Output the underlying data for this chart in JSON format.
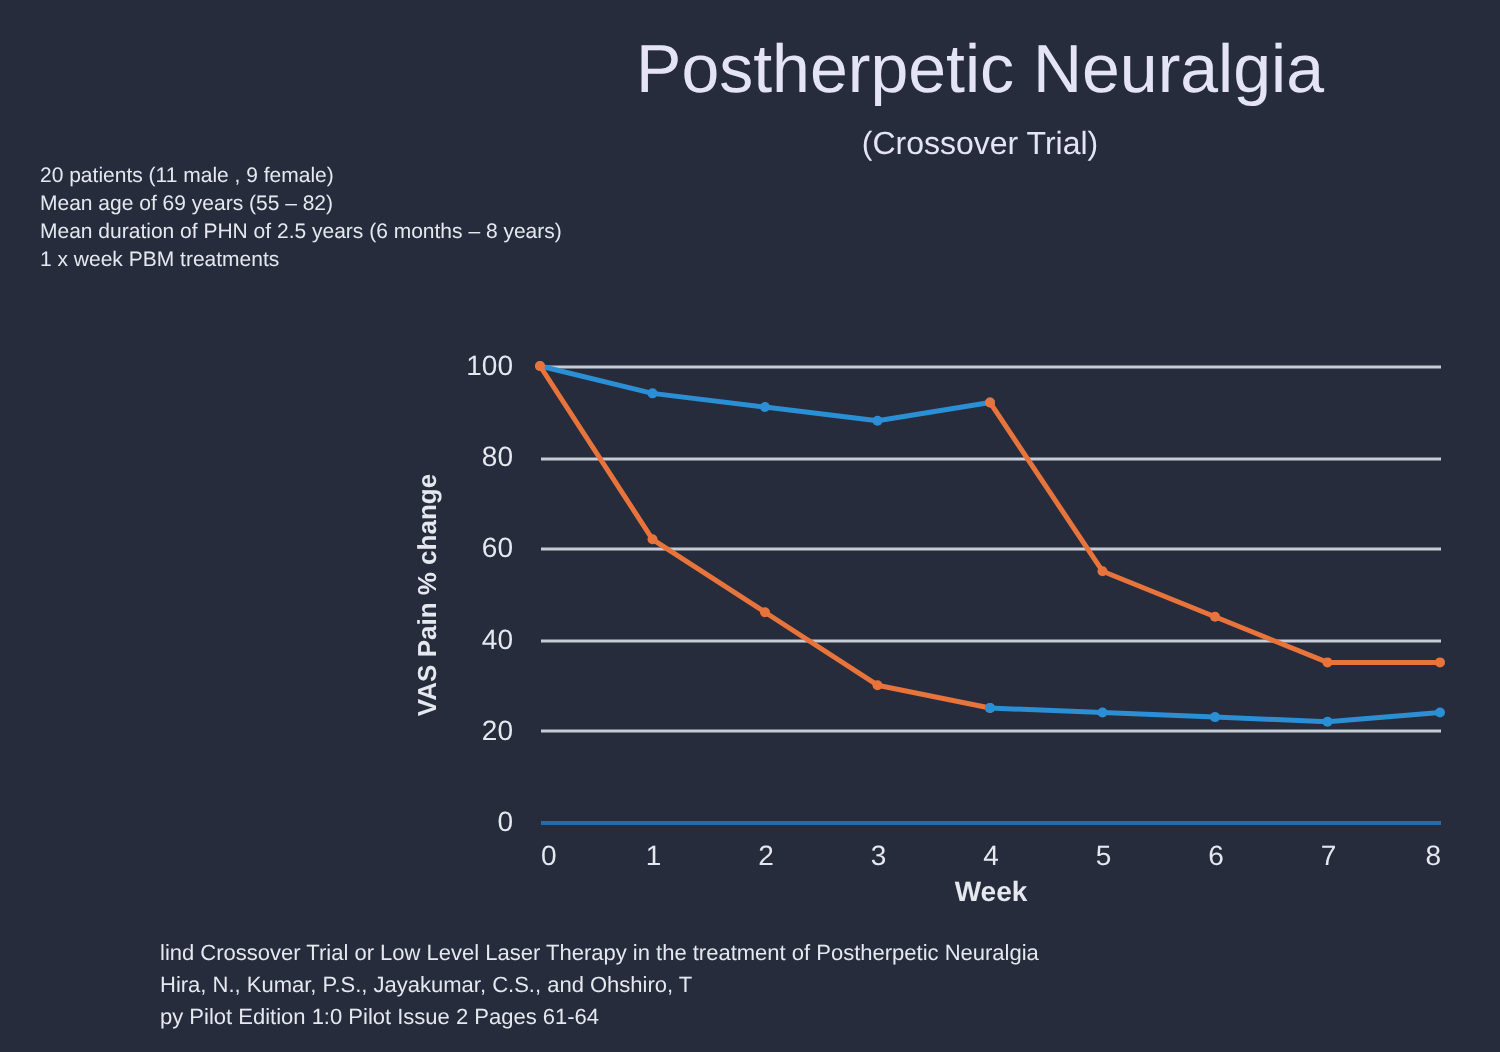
{
  "chart_data": {
    "type": "line",
    "title": "Postherpetic Neuralgia",
    "subtitle": "(Crossover Trial)",
    "xlabel": "Week",
    "ylabel": "VAS Pain % change",
    "xlim": [
      0,
      8
    ],
    "xticks": [
      0,
      1,
      2,
      3,
      4,
      5,
      6,
      7,
      8
    ],
    "ylim": [
      0,
      100
    ],
    "yticks": [
      0,
      20,
      40,
      60,
      80,
      100
    ],
    "grid": "y",
    "marker": "circle",
    "line_style": "solid",
    "series": [
      {
        "color": "#2b8fd6",
        "x": [
          0,
          1,
          2,
          3,
          4
        ],
        "values": [
          100,
          94,
          91,
          88,
          92
        ]
      },
      {
        "color": "#e8743b",
        "x": [
          0,
          1,
          2,
          3,
          4
        ],
        "values": [
          100,
          62,
          46,
          30,
          25
        ]
      },
      {
        "color": "#e8743b",
        "x": [
          4,
          5,
          6,
          7,
          8
        ],
        "values": [
          92,
          55,
          45,
          35,
          35
        ]
      },
      {
        "color": "#2b8fd6",
        "x": [
          4,
          5,
          6,
          7,
          8
        ],
        "values": [
          25,
          24,
          23,
          22,
          24
        ]
      }
    ],
    "annotations": [
      "20 patients (11 male , 9 female)",
      "Mean age of 69 years (55 – 82)",
      "Mean duration of PHN of 2.5 years (6 months – 8 years)",
      "1 x week PBM treatments",
      "lind Crossover Trial or Low Level Laser Therapy in the treatment of Postherpetic Neuralgia",
      "Hira, N., Kumar, P.S., Jayakumar, C.S., and Ohshiro, T",
      "py Pilot Edition 1:0 Pilot Issue 2 Pages 61-64"
    ]
  }
}
